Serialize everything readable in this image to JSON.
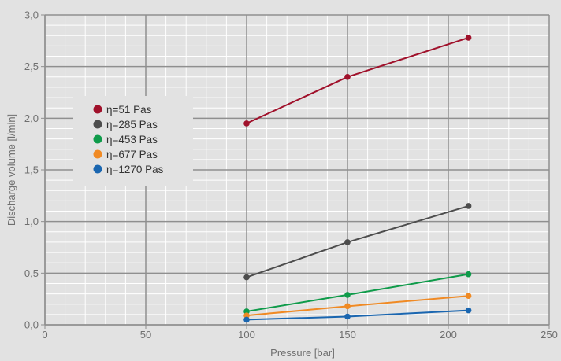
{
  "chart_data": {
    "type": "line",
    "title": "",
    "xlabel": "Pressure [bar]",
    "ylabel": "Discharge volume [l/min]",
    "xlim": [
      0,
      250
    ],
    "ylim": [
      0,
      3.0
    ],
    "xticks": [
      0,
      50,
      100,
      150,
      200,
      250
    ],
    "xtick_labels": [
      "0",
      "50",
      "100",
      "150",
      "200",
      "250"
    ],
    "yticks": [
      0,
      0.5,
      1.0,
      1.5,
      2.0,
      2.5,
      3.0
    ],
    "ytick_labels": [
      "0,0",
      "0,5",
      "1,0",
      "1,5",
      "2,0",
      "2,5",
      "3,0"
    ],
    "grid": true,
    "legend_position": "upper-left",
    "series": [
      {
        "name": "η=51 Pas",
        "color": "#a0112b",
        "x": [
          100,
          150,
          210
        ],
        "y": [
          1.95,
          2.4,
          2.78
        ]
      },
      {
        "name": "η=285 Pas",
        "color": "#4d4d4d",
        "x": [
          100,
          150,
          210
        ],
        "y": [
          0.46,
          0.8,
          1.15
        ]
      },
      {
        "name": "η=453 Pas",
        "color": "#0f9b4a",
        "x": [
          100,
          150,
          210
        ],
        "y": [
          0.13,
          0.29,
          0.49
        ]
      },
      {
        "name": "η=677 Pas",
        "color": "#f08a24",
        "x": [
          100,
          150,
          210
        ],
        "y": [
          0.09,
          0.18,
          0.28
        ]
      },
      {
        "name": "η=1270 Pas",
        "color": "#1a66b0",
        "x": [
          100,
          150,
          210
        ],
        "y": [
          0.05,
          0.08,
          0.14
        ]
      }
    ]
  }
}
